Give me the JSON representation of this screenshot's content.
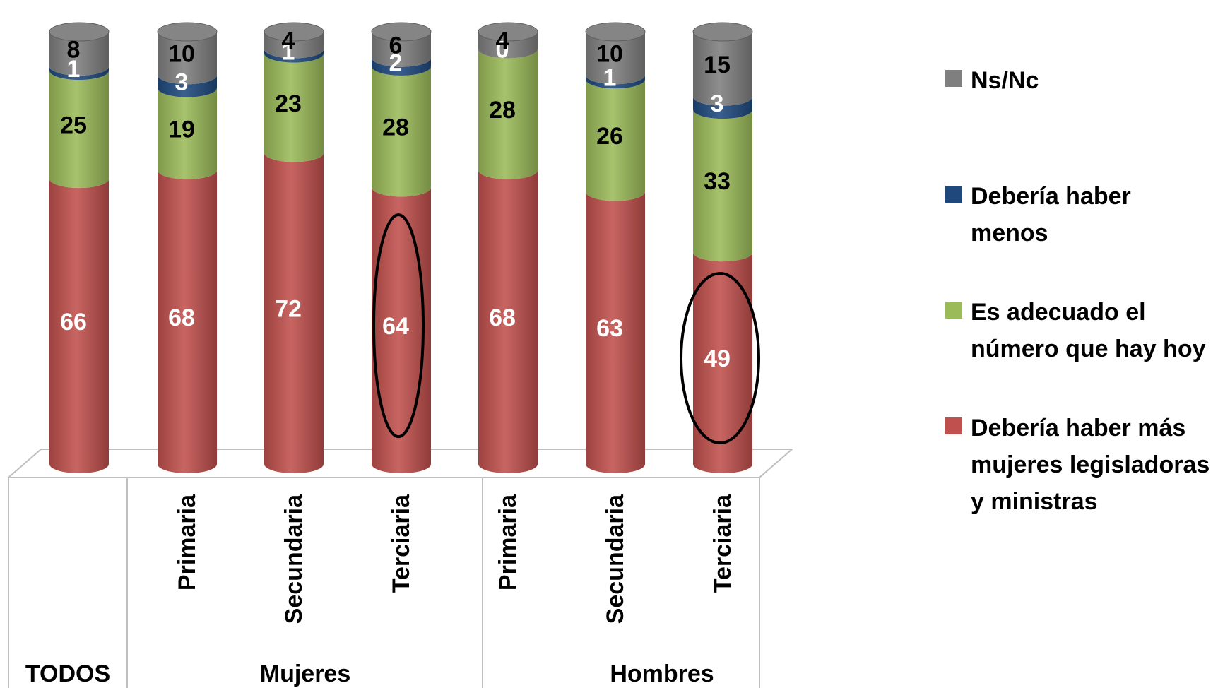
{
  "chart_data": {
    "type": "bar",
    "stacked": true,
    "categories": [
      "",
      "Primaria",
      "Secundaria",
      "Terciaria",
      "Primaria",
      "Secundaria",
      "Terciaria"
    ],
    "groups": [
      {
        "label": "TODOS",
        "categories": [
          0
        ]
      },
      {
        "label": "Mujeres",
        "categories": [
          1,
          2,
          3
        ]
      },
      {
        "label": "Hombres",
        "categories": [
          4,
          5,
          6
        ]
      }
    ],
    "series": [
      {
        "name": "Debería haber más mujeres legisladoras y ministras",
        "color": "#C0504D",
        "label_color": "#FFFFFF",
        "values": [
          66,
          68,
          72,
          64,
          68,
          63,
          49
        ]
      },
      {
        "name": "Es adecuado el número que hay hoy",
        "color": "#9BBB59",
        "label_color": "#000000",
        "values": [
          25,
          19,
          23,
          28,
          28,
          26,
          33
        ]
      },
      {
        "name": "Debería haber menos",
        "color": "#1F497D",
        "label_color": "#FFFFFF",
        "values": [
          1,
          3,
          1,
          2,
          0,
          1,
          3
        ]
      },
      {
        "name": "Ns/Nc",
        "color": "#7F7F7F",
        "label_color": "#000000",
        "values": [
          8,
          10,
          4,
          6,
          4,
          10,
          15
        ]
      }
    ],
    "legend": {
      "position": "right",
      "order": [
        3,
        2,
        1,
        0
      ],
      "lines": [
        [
          "Ns/Nc"
        ],
        [
          "Debería haber",
          "menos"
        ],
        [
          "Es adecuado el",
          "número que hay hoy"
        ],
        [
          "Debería haber más",
          "mujeres legisladoras",
          "y ministras"
        ]
      ]
    },
    "highlighted": [
      {
        "category_index": 3,
        "series": "Debería haber más mujeres legisladoras y ministras",
        "value": 64
      },
      {
        "category_index": 6,
        "series": "Debería haber más mujeres legisladoras y ministras",
        "value": 49
      }
    ],
    "ylim": [
      0,
      100
    ],
    "grid": false
  }
}
